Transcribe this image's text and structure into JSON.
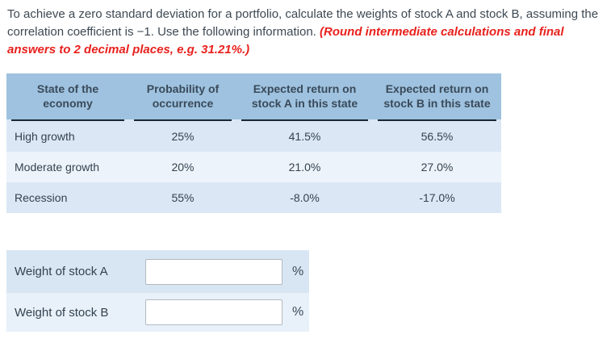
{
  "question": {
    "text": "To achieve a zero standard deviation for a portfolio, calculate the weights of stock A and stock B, assuming the correlation coefficient is −1. Use the following information. ",
    "emphasis": "(Round intermediate calculations and final answers to 2 decimal places, e.g. 31.21%.)"
  },
  "table": {
    "headers": [
      "State of the economy",
      "Probability of occurrence",
      "Expected return on stock A in this state",
      "Expected return on stock B in this state"
    ],
    "rows": [
      [
        "High growth",
        "25%",
        "41.5%",
        "56.5%"
      ],
      [
        "Moderate growth",
        "20%",
        "21.0%",
        "27.0%"
      ],
      [
        "Recession",
        "55%",
        "-8.0%",
        "-17.0%"
      ]
    ]
  },
  "answers": {
    "rows": [
      {
        "label": "Weight of stock A",
        "value": "",
        "unit": "%"
      },
      {
        "label": "Weight of stock B",
        "value": "",
        "unit": "%"
      }
    ]
  },
  "colors": {
    "header_bg": "#9ec2df",
    "header_underline": "#1b2732",
    "row_odd_bg": "#dbe7f4",
    "row_even_bg": "#edf3fa",
    "answer_row_a_bg": "#d8e6f3",
    "answer_row_b_bg": "#e8f1f9",
    "body_text": "#3d4852",
    "emphasis_red": "#e8211d"
  }
}
